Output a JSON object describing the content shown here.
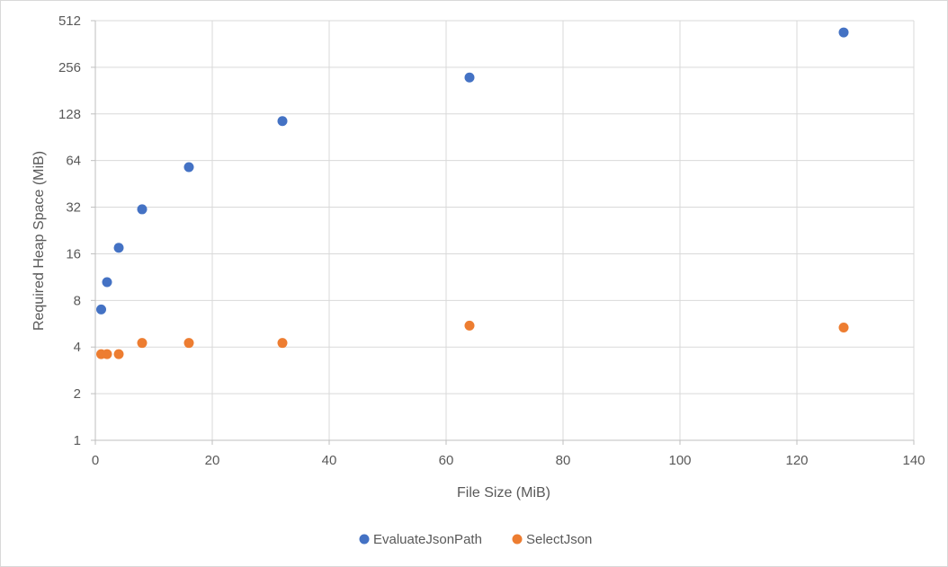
{
  "chart_data": {
    "type": "scatter",
    "title": "",
    "xlabel": "File Size (MiB)",
    "ylabel": "Required Heap Space (MiB)",
    "xlim": [
      0,
      140
    ],
    "ylim": [
      1,
      512
    ],
    "yscale": "log2",
    "xticks": [
      0,
      20,
      40,
      60,
      80,
      100,
      120,
      140
    ],
    "yticks": [
      1,
      2,
      4,
      8,
      16,
      32,
      64,
      128,
      256,
      512
    ],
    "grid": true,
    "legend_position": "bottom",
    "series": [
      {
        "name": "EvaluateJsonPath",
        "color": "#4472C4",
        "x": [
          1,
          2,
          4,
          8,
          16,
          32,
          64,
          128
        ],
        "y": [
          7,
          10.5,
          17.5,
          31,
          58,
          115,
          220,
          430
        ]
      },
      {
        "name": "SelectJson",
        "color": "#ED7D31",
        "x": [
          1,
          2,
          4,
          8,
          16,
          32,
          64,
          128
        ],
        "y": [
          3.6,
          3.6,
          3.6,
          4.25,
          4.25,
          4.25,
          5.5,
          5.35
        ]
      }
    ]
  }
}
